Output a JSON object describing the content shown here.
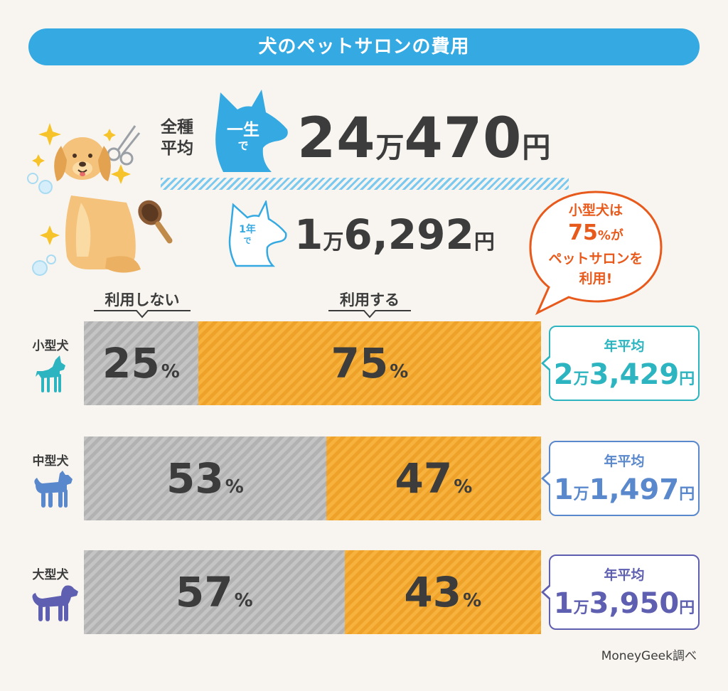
{
  "title": "犬のペットサロンの費用",
  "lifetime": {
    "avg_label_1": "全種",
    "avg_label_2": "平均",
    "head_text_1": "一生",
    "head_text_2": "で",
    "amount": "24",
    "unit_man": "万",
    "amount_rest": "470",
    "unit_yen": "円"
  },
  "annual": {
    "head_text_1": "1年",
    "head_text_2": "で",
    "amount": "1",
    "unit_man": "万",
    "amount_rest": "6,292",
    "unit_yen": "円"
  },
  "callout": {
    "line1": "小型犬は",
    "pct": "75",
    "pct_suffix": "%が",
    "line3": "ペットサロンを",
    "line4": "利用!",
    "color": "#e85a1c"
  },
  "column_labels": {
    "no": "利用しない",
    "yes": "利用する"
  },
  "source": "MoneyGeek調べ",
  "colors": {
    "title_bg": "#35a9e2",
    "not_use": "#bdbdbd",
    "use": "#f6b23c",
    "small": "#2cb5c0",
    "medium": "#5a88cc",
    "large": "#5e5fb0"
  },
  "chart_data": {
    "type": "bar",
    "orientation": "horizontal",
    "stacked": true,
    "unit": "%",
    "categories": [
      "小型犬",
      "中型犬",
      "大型犬"
    ],
    "series": [
      {
        "name": "利用しない",
        "values": [
          25,
          53,
          57
        ]
      },
      {
        "name": "利用する",
        "values": [
          75,
          47,
          43
        ]
      }
    ],
    "annual_average": [
      {
        "label": "年平均",
        "man": "2",
        "rest": "3,429",
        "unit_man": "万",
        "unit_yen": "円"
      },
      {
        "label": "年平均",
        "man": "1",
        "rest": "1,497",
        "unit_man": "万",
        "unit_yen": "円"
      },
      {
        "label": "年平均",
        "man": "1",
        "rest": "3,950",
        "unit_man": "万",
        "unit_yen": "円"
      }
    ],
    "xlim": [
      0,
      100
    ]
  }
}
